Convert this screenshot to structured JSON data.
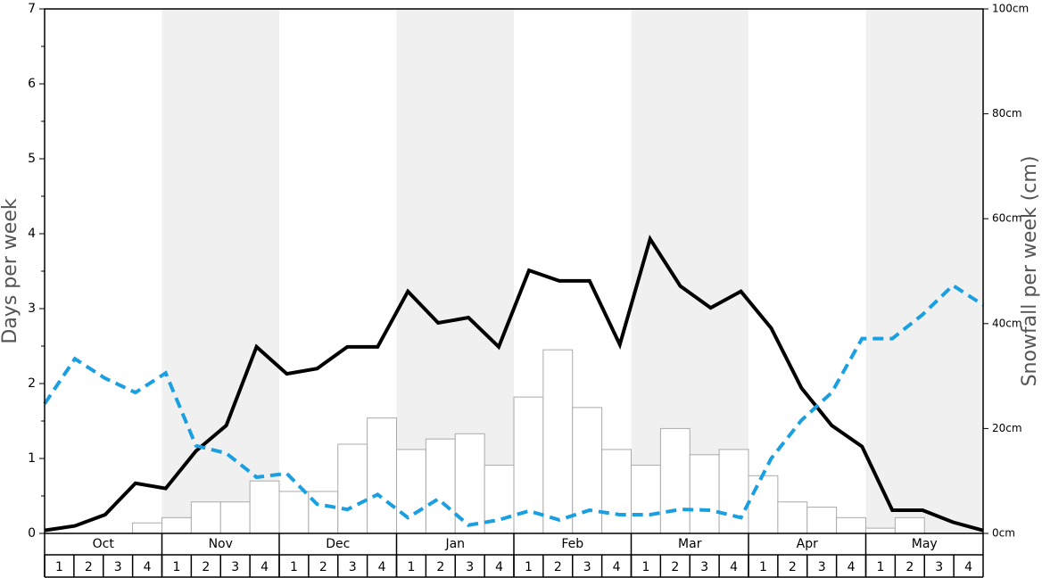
{
  "chart_data": {
    "type": "combo",
    "y_label": "Days per week",
    "y2_label": "Snowfall per week (cm)",
    "months": [
      "Oct",
      "Nov",
      "Dec",
      "Jan",
      "Feb",
      "Mar",
      "Apr",
      "May"
    ],
    "shaded_months": [
      false,
      true,
      false,
      true,
      false,
      true,
      false,
      true
    ],
    "shade_color": "#f0f0f0",
    "categories": [
      "1",
      "2",
      "3",
      "4",
      "1",
      "2",
      "3",
      "4",
      "1",
      "2",
      "3",
      "4",
      "1",
      "2",
      "3",
      "4",
      "1",
      "2",
      "3",
      "4",
      "1",
      "2",
      "3",
      "4",
      "1",
      "2",
      "3",
      "4",
      "1",
      "2",
      "3",
      "4"
    ],
    "ylim": [
      0,
      7
    ],
    "yticks": [
      0,
      1,
      2,
      3,
      4,
      5,
      6,
      7
    ],
    "yminor_ticks": [
      0.5,
      1.5,
      2.5,
      3.5,
      4.5,
      5.5,
      6.5
    ],
    "y2lim": [
      0,
      100
    ],
    "y2ticks": [
      {
        "value": 0,
        "label": "0cm"
      },
      {
        "value": 20,
        "label": "20cm"
      },
      {
        "value": 40,
        "label": "40cm"
      },
      {
        "value": 60,
        "label": "60cm"
      },
      {
        "value": 80,
        "label": "80cm"
      },
      {
        "value": 100,
        "label": "100cm"
      }
    ],
    "series": [
      {
        "type": "bar",
        "axis": "y2",
        "color": "#ffffff",
        "edge_color": "#aaaaaa",
        "values": [
          0,
          0,
          0,
          2,
          3,
          6,
          6,
          10,
          8,
          8,
          17,
          22,
          16,
          18,
          19,
          13,
          26,
          35,
          24,
          16,
          13,
          20,
          15,
          16,
          11,
          6,
          5,
          3,
          1,
          3,
          0,
          0
        ]
      },
      {
        "type": "line",
        "color": "#000000",
        "dashed": false,
        "values": [
          0.04,
          0.1,
          0.25,
          0.67,
          0.6,
          1.1,
          1.44,
          2.49,
          2.13,
          2.2,
          2.49,
          2.49,
          3.23,
          2.81,
          2.88,
          2.49,
          3.51,
          3.37,
          3.37,
          2.52,
          3.93,
          3.3,
          3.01,
          3.23,
          2.74,
          1.94,
          1.44,
          1.16,
          0.31,
          0.31,
          0.15,
          0.04
        ]
      },
      {
        "type": "line",
        "color": "#1a9fe0",
        "dashed": true,
        "values": [
          1.73,
          2.33,
          2.07,
          1.88,
          2.14,
          1.17,
          1.07,
          0.75,
          0.8,
          0.39,
          0.32,
          0.52,
          0.21,
          0.46,
          0.11,
          0.18,
          0.3,
          0.18,
          0.31,
          0.25,
          0.25,
          0.32,
          0.31,
          0.21,
          1.0,
          1.51,
          1.88,
          2.6,
          2.6,
          2.92,
          3.31,
          3.05
        ]
      }
    ]
  }
}
